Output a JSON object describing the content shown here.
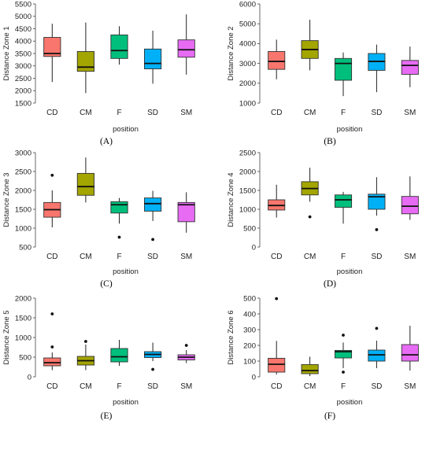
{
  "chart_data": [
    {
      "type": "box",
      "panel_label": "(A)",
      "ylabel": "Distance Zone 1",
      "xlabel": "position",
      "ylim": [
        1500,
        5500
      ],
      "yticks": [
        1500,
        2000,
        2500,
        3000,
        3500,
        4000,
        4500,
        5000,
        5500
      ],
      "categories": [
        "CD",
        "CM",
        "F",
        "SD",
        "SM"
      ],
      "boxes": [
        {
          "min": 2350,
          "q1": 3380,
          "median": 3500,
          "q3": 4150,
          "max": 4700,
          "outliers": []
        },
        {
          "min": 1900,
          "q1": 2780,
          "median": 2950,
          "q3": 3580,
          "max": 4750,
          "outliers": []
        },
        {
          "min": 3050,
          "q1": 3300,
          "median": 3620,
          "q3": 4250,
          "max": 4600,
          "outliers": []
        },
        {
          "min": 2280,
          "q1": 2880,
          "median": 3100,
          "q3": 3680,
          "max": 4420,
          "outliers": []
        },
        {
          "min": 2650,
          "q1": 3350,
          "median": 3650,
          "q3": 4050,
          "max": 5080,
          "outliers": []
        }
      ]
    },
    {
      "type": "box",
      "panel_label": "(B)",
      "ylabel": "Distance Zone 2",
      "xlabel": "position",
      "ylim": [
        1000,
        6000
      ],
      "yticks": [
        1000,
        2000,
        3000,
        4000,
        5000,
        6000
      ],
      "categories": [
        "CD",
        "CM",
        "F",
        "SD",
        "SM"
      ],
      "boxes": [
        {
          "min": 2200,
          "q1": 2700,
          "median": 3100,
          "q3": 3600,
          "max": 4200,
          "outliers": []
        },
        {
          "min": 2650,
          "q1": 3250,
          "median": 3700,
          "q3": 4150,
          "max": 5200,
          "outliers": []
        },
        {
          "min": 1350,
          "q1": 2150,
          "median": 3000,
          "q3": 3250,
          "max": 3550,
          "outliers": []
        },
        {
          "min": 1550,
          "q1": 2650,
          "median": 3100,
          "q3": 3500,
          "max": 3950,
          "outliers": []
        },
        {
          "min": 1800,
          "q1": 2450,
          "median": 2900,
          "q3": 3150,
          "max": 3850,
          "outliers": []
        }
      ]
    },
    {
      "type": "box",
      "panel_label": "(C)",
      "ylabel": "Distance Zone 3",
      "xlabel": "position",
      "ylim": [
        500,
        3000
      ],
      "yticks": [
        500,
        1000,
        1500,
        2000,
        2500,
        3000
      ],
      "categories": [
        "CD",
        "CM",
        "F",
        "SD",
        "SM"
      ],
      "boxes": [
        {
          "min": 1020,
          "q1": 1290,
          "median": 1490,
          "q3": 1680,
          "max": 2000,
          "outliers": [
            2400
          ]
        },
        {
          "min": 1680,
          "q1": 1870,
          "median": 2100,
          "q3": 2450,
          "max": 2870,
          "outliers": []
        },
        {
          "min": 1120,
          "q1": 1400,
          "median": 1620,
          "q3": 1700,
          "max": 1800,
          "outliers": [
            760
          ]
        },
        {
          "min": 1190,
          "q1": 1450,
          "median": 1650,
          "q3": 1800,
          "max": 1990,
          "outliers": [
            700
          ]
        },
        {
          "min": 880,
          "q1": 1170,
          "median": 1620,
          "q3": 1680,
          "max": 1950,
          "outliers": []
        }
      ]
    },
    {
      "type": "box",
      "panel_label": "(D)",
      "ylabel": "Distance Zone 4",
      "xlabel": "position",
      "ylim": [
        0,
        2500
      ],
      "yticks": [
        0,
        500,
        1000,
        1500,
        2000,
        2500
      ],
      "categories": [
        "CD",
        "CM",
        "F",
        "SD",
        "SM"
      ],
      "boxes": [
        {
          "min": 780,
          "q1": 980,
          "median": 1100,
          "q3": 1250,
          "max": 1650,
          "outliers": []
        },
        {
          "min": 1200,
          "q1": 1380,
          "median": 1550,
          "q3": 1730,
          "max": 2100,
          "outliers": [
            800
          ]
        },
        {
          "min": 620,
          "q1": 1050,
          "median": 1250,
          "q3": 1380,
          "max": 1460,
          "outliers": []
        },
        {
          "min": 830,
          "q1": 1000,
          "median": 1330,
          "q3": 1400,
          "max": 1850,
          "outliers": [
            460
          ]
        },
        {
          "min": 720,
          "q1": 880,
          "median": 1080,
          "q3": 1340,
          "max": 1870,
          "outliers": []
        }
      ]
    },
    {
      "type": "box",
      "panel_label": "(E)",
      "ylabel": "Distance Zone 5",
      "xlabel": "position",
      "ylim": [
        0,
        2000
      ],
      "yticks": [
        0,
        500,
        1000,
        1500,
        2000
      ],
      "categories": [
        "CD",
        "CM",
        "F",
        "SD",
        "SM"
      ],
      "boxes": [
        {
          "min": 170,
          "q1": 280,
          "median": 360,
          "q3": 480,
          "max": 620,
          "outliers": [
            760,
            1600
          ]
        },
        {
          "min": 170,
          "q1": 300,
          "median": 410,
          "q3": 520,
          "max": 820,
          "outliers": [
            900
          ]
        },
        {
          "min": 280,
          "q1": 380,
          "median": 510,
          "q3": 720,
          "max": 940,
          "outliers": []
        },
        {
          "min": 400,
          "q1": 490,
          "median": 570,
          "q3": 640,
          "max": 870,
          "outliers": [
            190
          ]
        },
        {
          "min": 350,
          "q1": 430,
          "median": 500,
          "q3": 560,
          "max": 680,
          "outliers": [
            800
          ]
        }
      ]
    },
    {
      "type": "box",
      "panel_label": "(F)",
      "ylabel": "Distance Zone 6",
      "xlabel": "position",
      "ylim": [
        0,
        500
      ],
      "yticks": [
        0,
        100,
        200,
        300,
        400,
        500
      ],
      "categories": [
        "CD",
        "CM",
        "F",
        "SD",
        "SM"
      ],
      "boxes": [
        {
          "min": 15,
          "q1": 30,
          "median": 80,
          "q3": 118,
          "max": 228,
          "outliers": [
            497
          ]
        },
        {
          "min": 5,
          "q1": 20,
          "median": 40,
          "q3": 78,
          "max": 128,
          "outliers": []
        },
        {
          "min": 55,
          "q1": 120,
          "median": 160,
          "q3": 168,
          "max": 218,
          "outliers": [
            265,
            30
          ]
        },
        {
          "min": 55,
          "q1": 100,
          "median": 140,
          "q3": 170,
          "max": 230,
          "outliers": [
            308
          ]
        },
        {
          "min": 40,
          "q1": 100,
          "median": 140,
          "q3": 205,
          "max": 325,
          "outliers": []
        }
      ]
    }
  ],
  "colors": {
    "categories": [
      "#f8766d",
      "#a3a500",
      "#00bf7d",
      "#00b0f6",
      "#e76bf3"
    ],
    "axis": "#444444",
    "text": "#222222"
  }
}
